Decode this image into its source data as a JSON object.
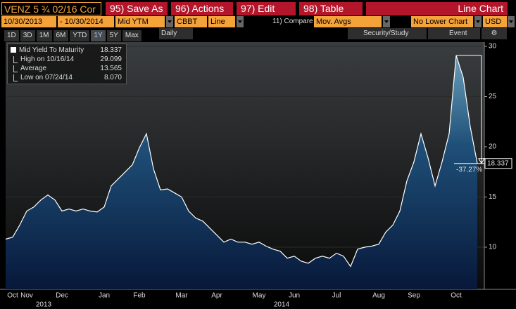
{
  "header": {
    "security": "VENZ 5 ¾ 02/16 Cor",
    "buttons": [
      "95) Save As",
      "96) Actions",
      "97) Edit",
      "98) Table"
    ],
    "view": "Line Chart"
  },
  "settings": {
    "start": "10/30/2013",
    "end": "- 10/30/2014",
    "field": "Mid YTM",
    "source": "CBBT",
    "style": "Line",
    "compare": "11) Compare",
    "studies": "Mov. Avgs",
    "lower": "No Lower Chart",
    "currency": "USD"
  },
  "periods": [
    "1D",
    "3D",
    "1M",
    "6M",
    "YTD",
    "1Y",
    "5Y",
    "Max"
  ],
  "frequency": "Daily",
  "tools": [
    "Security/Study",
    "Event"
  ],
  "chart_data": {
    "type": "line",
    "categories": [
      null,
      "Oct",
      null,
      "Nov",
      null,
      null,
      null,
      null,
      "Dec",
      null,
      null,
      null,
      null,
      null,
      "Jan",
      null,
      null,
      null,
      null,
      "Feb",
      null,
      null,
      null,
      null,
      null,
      "Mar",
      null,
      null,
      null,
      null,
      "Apr",
      null,
      null,
      null,
      null,
      null,
      "May",
      null,
      null,
      null,
      null,
      "Jun",
      null,
      null,
      null,
      null,
      null,
      "Jul",
      null,
      null,
      null,
      null,
      null,
      "Aug",
      null,
      null,
      null,
      null,
      "Sep",
      null,
      null,
      null,
      null,
      null,
      "Oct",
      null,
      null,
      null
    ],
    "year_labels": [
      "2013",
      "2014"
    ],
    "series": [
      {
        "name": "Mid Yield To Maturity",
        "color": "#ffffff",
        "values": [
          10.8,
          11.0,
          12.2,
          13.6,
          14.0,
          14.7,
          15.2,
          14.7,
          13.6,
          13.8,
          13.6,
          13.8,
          13.6,
          13.5,
          14.0,
          16.1,
          16.8,
          17.5,
          18.2,
          19.9,
          21.3,
          17.8,
          15.7,
          15.8,
          15.4,
          15.0,
          13.6,
          12.9,
          12.6,
          11.9,
          11.2,
          10.5,
          10.8,
          10.5,
          10.5,
          10.3,
          10.5,
          10.1,
          9.8,
          9.6,
          8.9,
          9.1,
          8.6,
          8.4,
          8.9,
          9.1,
          8.9,
          9.4,
          9.1,
          8.07,
          9.8,
          10.0,
          10.1,
          10.3,
          11.5,
          12.2,
          13.6,
          16.6,
          18.5,
          21.3,
          18.9,
          16.1,
          18.5,
          21.3,
          29.099,
          26.9,
          22.0,
          18.337
        ]
      }
    ],
    "legend": [
      {
        "label": "Mid Yield To Maturity",
        "value": 18.337
      },
      {
        "label": "High on 10/16/14",
        "value": 29.099
      },
      {
        "label": "Average",
        "value": 13.565
      },
      {
        "label": "Low on 07/24/14",
        "value": 8.07,
        "value_label": "8.070"
      }
    ],
    "change_label": "-37.27%",
    "ylim": [
      5.8,
      30.42
    ],
    "yticks": [
      10,
      15,
      20,
      25,
      30
    ],
    "grid": true
  }
}
